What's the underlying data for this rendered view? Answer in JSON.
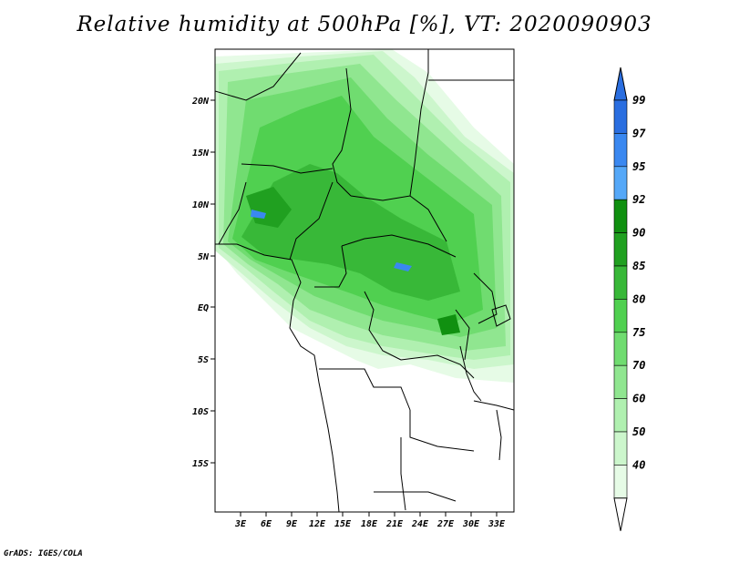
{
  "title": "Relative humidity at 500hPa [%], VT: 2020090903",
  "credit": "GrADS: IGES/COLA",
  "map": {
    "lat_labels": [
      "20N",
      "15N",
      "10N",
      "5N",
      "EQ",
      "5S",
      "10S",
      "15S"
    ],
    "lon_labels": [
      "3E",
      "6E",
      "9E",
      "12E",
      "15E",
      "18E",
      "21E",
      "24E",
      "27E",
      "30E",
      "33E"
    ]
  },
  "colorbar": {
    "labels": [
      "99",
      "97",
      "95",
      "92",
      "90",
      "85",
      "80",
      "75",
      "70",
      "60",
      "50",
      "40"
    ],
    "colors": [
      "#2a6ee0",
      "#3a88f0",
      "#55a8f8",
      "#109010",
      "#20a020",
      "#38b838",
      "#50d050",
      "#70dc70",
      "#90e690",
      "#b0f0b0",
      "#ccf6cc",
      "#e6fbe6"
    ],
    "top_arrow_color": "#2a6ee0",
    "bottom_arrow_color": "#ffffff"
  }
}
